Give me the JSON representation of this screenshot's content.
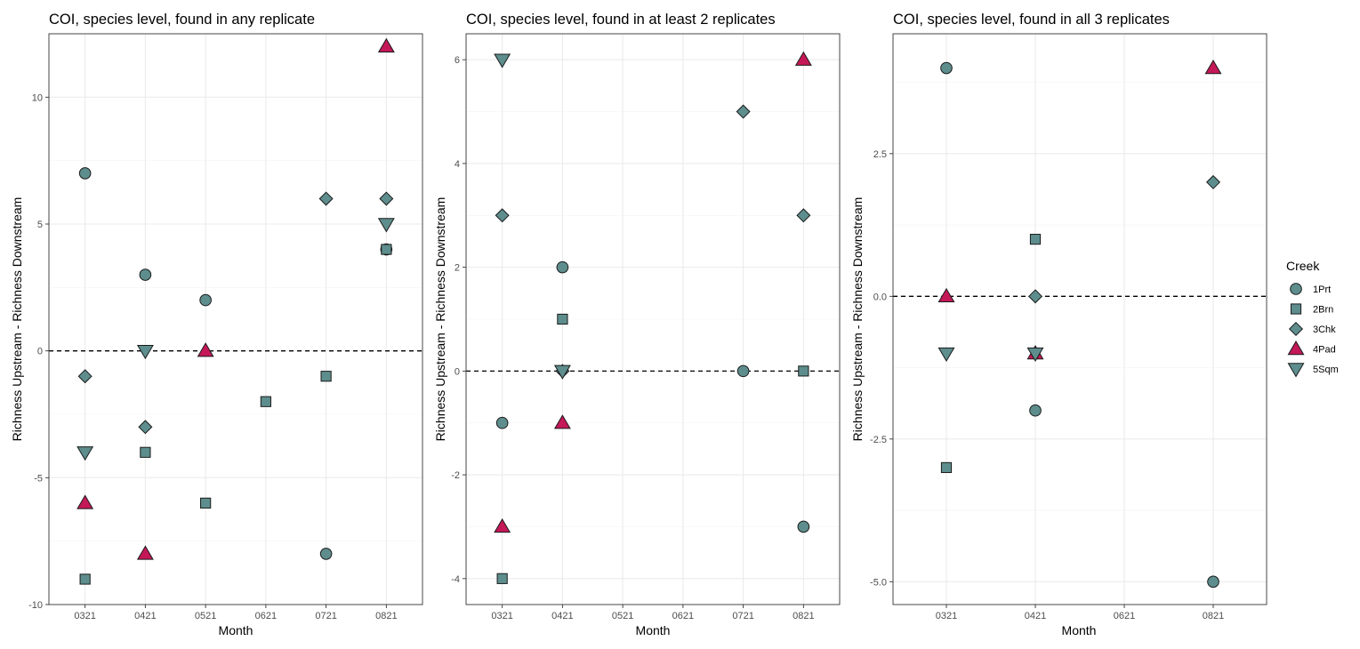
{
  "colors": {
    "teal_fill": "#5e8d8d",
    "magenta_fill": "#c41858",
    "outline": "#1a1a1a"
  },
  "legend": {
    "title": "Creek",
    "items": [
      {
        "label": "1Prt",
        "shape": "circle",
        "icon": "circle-marker-icon"
      },
      {
        "label": "2Brn",
        "shape": "square",
        "icon": "square-marker-icon"
      },
      {
        "label": "3Chk",
        "shape": "diamond",
        "icon": "diamond-marker-icon"
      },
      {
        "label": "4Pad",
        "shape": "triangle-up",
        "icon": "triangle-up-marker-icon"
      },
      {
        "label": "5Sqm",
        "shape": "triangle-down",
        "icon": "triangle-down-marker-icon"
      }
    ]
  },
  "chart_data": [
    {
      "type": "scatter",
      "title": "COI, species level, found in any replicate",
      "xlabel": "Month",
      "ylabel": "Richness Upstream - Richness Downstream",
      "categories": [
        "0321",
        "0421",
        "0521",
        "0621",
        "0721",
        "0821"
      ],
      "ylim": [
        -10,
        12.5
      ],
      "yticks": [
        -10,
        -5,
        0,
        5,
        10
      ],
      "ytick_labels": [
        "-10",
        "-5",
        "0",
        "5",
        "10"
      ],
      "reference_line": 0,
      "series": [
        {
          "name": "1Prt",
          "points": [
            [
              "0321",
              7
            ],
            [
              "0421",
              3
            ],
            [
              "0521",
              2
            ],
            [
              "0721",
              -8
            ],
            [
              "0821",
              4
            ]
          ]
        },
        {
          "name": "2Brn",
          "points": [
            [
              "0321",
              -9
            ],
            [
              "0421",
              -4
            ],
            [
              "0521",
              -6
            ],
            [
              "0621",
              -2
            ],
            [
              "0721",
              -1
            ],
            [
              "0821",
              4
            ]
          ]
        },
        {
          "name": "3Chk",
          "points": [
            [
              "0321",
              -1
            ],
            [
              "0421",
              -3
            ],
            [
              "0721",
              6
            ],
            [
              "0821",
              6
            ]
          ]
        },
        {
          "name": "4Pad",
          "points": [
            [
              "0321",
              -6
            ],
            [
              "0421",
              -8
            ],
            [
              "0521",
              0
            ],
            [
              "0821",
              12
            ]
          ]
        },
        {
          "name": "5Sqm",
          "points": [
            [
              "0321",
              -4
            ],
            [
              "0421",
              0
            ],
            [
              "0821",
              5
            ]
          ]
        }
      ]
    },
    {
      "type": "scatter",
      "title": "COI, species level, found in at least 2 replicates",
      "xlabel": "Month",
      "ylabel": "Richness Upstream - Richness Downstream",
      "categories": [
        "0321",
        "0421",
        "0521",
        "0621",
        "0721",
        "0821"
      ],
      "ylim": [
        -4.5,
        6.5
      ],
      "yticks": [
        -4,
        -2,
        0,
        2,
        4,
        6
      ],
      "ytick_labels": [
        "-4",
        "-2",
        "0",
        "2",
        "4",
        "6"
      ],
      "reference_line": 0,
      "series": [
        {
          "name": "1Prt",
          "points": [
            [
              "0321",
              -1
            ],
            [
              "0421",
              2
            ],
            [
              "0721",
              0
            ],
            [
              "0821",
              -3
            ]
          ]
        },
        {
          "name": "2Brn",
          "points": [
            [
              "0321",
              -4
            ],
            [
              "0421",
              1
            ],
            [
              "0821",
              0
            ]
          ]
        },
        {
          "name": "3Chk",
          "points": [
            [
              "0321",
              3
            ],
            [
              "0421",
              0
            ],
            [
              "0721",
              5
            ],
            [
              "0821",
              3
            ]
          ]
        },
        {
          "name": "4Pad",
          "points": [
            [
              "0321",
              -3
            ],
            [
              "0421",
              -1
            ],
            [
              "0821",
              6
            ]
          ]
        },
        {
          "name": "5Sqm",
          "points": [
            [
              "0321",
              6
            ],
            [
              "0421",
              0
            ]
          ]
        }
      ]
    },
    {
      "type": "scatter",
      "title": "COI, species level, found in all 3 replicates",
      "xlabel": "Month",
      "ylabel": "Richness Upstream - Richness Downstream",
      "categories": [
        "0321",
        "0421",
        "0621",
        "0821"
      ],
      "ylim": [
        -5.4,
        4.6
      ],
      "yticks": [
        -5,
        -2.5,
        0,
        2.5
      ],
      "ytick_labels": [
        "-5.0",
        "-2.5",
        "0.0",
        "2.5"
      ],
      "reference_line": 0,
      "series": [
        {
          "name": "1Prt",
          "points": [
            [
              "0321",
              4
            ],
            [
              "0421",
              -2
            ],
            [
              "0821",
              -5
            ]
          ]
        },
        {
          "name": "2Brn",
          "points": [
            [
              "0321",
              -3
            ],
            [
              "0421",
              1
            ]
          ]
        },
        {
          "name": "3Chk",
          "points": [
            [
              "0421",
              0
            ],
            [
              "0821",
              2
            ]
          ]
        },
        {
          "name": "4Pad",
          "points": [
            [
              "0321",
              0
            ],
            [
              "0421",
              -1
            ],
            [
              "0821",
              4
            ]
          ]
        },
        {
          "name": "5Sqm",
          "points": [
            [
              "0321",
              -1
            ],
            [
              "0421",
              -1
            ]
          ]
        }
      ]
    }
  ]
}
